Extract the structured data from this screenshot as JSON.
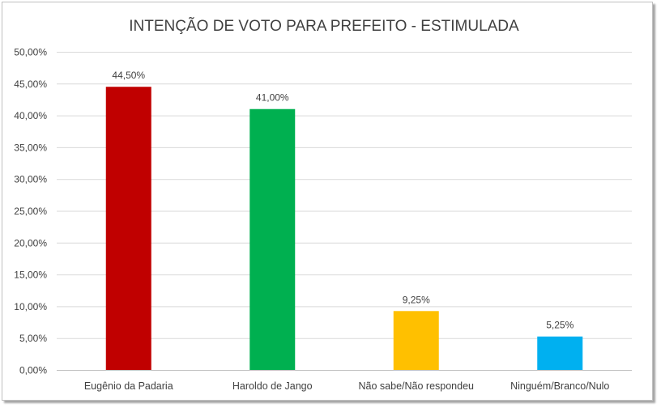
{
  "chart_data": {
    "type": "bar",
    "title": "INTENÇÃO DE VOTO PARA PREFEITO - ESTIMULADA",
    "categories": [
      "Eugênio da Padaria",
      "Haroldo de Jango",
      "Não sabe/Não respondeu",
      "Ninguém/Branco/Nulo"
    ],
    "values": [
      44.5,
      41.0,
      9.25,
      5.25
    ],
    "value_labels": [
      "44,50%",
      "41,00%",
      "9,25%",
      "5,25%"
    ],
    "colors": [
      "#c00000",
      "#00b050",
      "#ffc000",
      "#00b0f0"
    ],
    "ylim": [
      0,
      50
    ],
    "yticks": [
      0,
      5,
      10,
      15,
      20,
      25,
      30,
      35,
      40,
      45,
      50
    ],
    "ytick_labels": [
      "0,00%",
      "5,00%",
      "10,00%",
      "15,00%",
      "20,00%",
      "25,00%",
      "30,00%",
      "35,00%",
      "40,00%",
      "45,00%",
      "50,00%"
    ],
    "grid": true,
    "legend": "none",
    "xlabel": "",
    "ylabel": ""
  }
}
